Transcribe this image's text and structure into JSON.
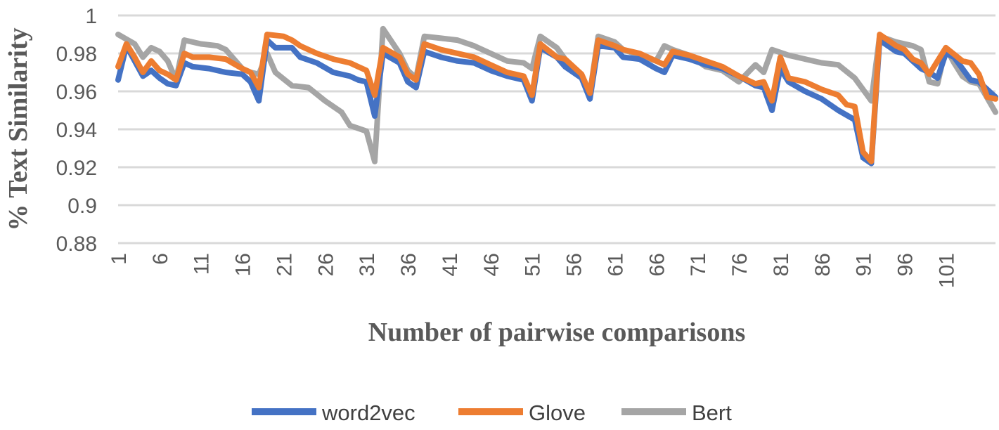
{
  "chart_data": {
    "type": "line",
    "xlabel": "Number of pairwise comparisons",
    "ylabel": "% Text Similarity",
    "ylim": [
      0.88,
      1.0
    ],
    "y_ticks": [
      "0.88",
      "0.9",
      "0.92",
      "0.94",
      "0.96",
      "0.98",
      "1"
    ],
    "y_tick_values": [
      0.88,
      0.9,
      0.92,
      0.94,
      0.96,
      0.98,
      1.0
    ],
    "x_ticks": [
      "1",
      "6",
      "11",
      "16",
      "21",
      "26",
      "31",
      "36",
      "41",
      "46",
      "51",
      "56",
      "61",
      "66",
      "71",
      "76",
      "81",
      "86",
      "91",
      "96",
      "101"
    ],
    "x_tick_values": [
      1,
      6,
      11,
      16,
      21,
      26,
      31,
      36,
      41,
      46,
      51,
      56,
      61,
      66,
      71,
      76,
      81,
      86,
      91,
      96,
      101
    ],
    "x_range": [
      1,
      105
    ],
    "grid": "horizontal",
    "legend_position": "bottom",
    "colors": {
      "word2vec": "#4472C4",
      "Glove": "#ED7D31",
      "Bert": "#A5A5A5",
      "grid": "#D9D9D9"
    },
    "series": [
      {
        "name": "word2vec",
        "color": "#4472C4",
        "points": [
          [
            1,
            0.966
          ],
          [
            2,
            0.984
          ],
          [
            4,
            0.968
          ],
          [
            5,
            0.971
          ],
          [
            6,
            0.967
          ],
          [
            7,
            0.964
          ],
          [
            8,
            0.963
          ],
          [
            9,
            0.975
          ],
          [
            10,
            0.973
          ],
          [
            12,
            0.972
          ],
          [
            14,
            0.97
          ],
          [
            16,
            0.969
          ],
          [
            17,
            0.965
          ],
          [
            18,
            0.955
          ],
          [
            19,
            0.987
          ],
          [
            20,
            0.983
          ],
          [
            22,
            0.983
          ],
          [
            23,
            0.978
          ],
          [
            25,
            0.975
          ],
          [
            27,
            0.97
          ],
          [
            29,
            0.968
          ],
          [
            30,
            0.966
          ],
          [
            31,
            0.965
          ],
          [
            32,
            0.947
          ],
          [
            33,
            0.98
          ],
          [
            35,
            0.975
          ],
          [
            36,
            0.965
          ],
          [
            37,
            0.962
          ],
          [
            38,
            0.981
          ],
          [
            40,
            0.978
          ],
          [
            42,
            0.976
          ],
          [
            44,
            0.975
          ],
          [
            46,
            0.971
          ],
          [
            48,
            0.968
          ],
          [
            50,
            0.966
          ],
          [
            51,
            0.955
          ],
          [
            52,
            0.983
          ],
          [
            54,
            0.978
          ],
          [
            55,
            0.973
          ],
          [
            57,
            0.967
          ],
          [
            58,
            0.956
          ],
          [
            59,
            0.984
          ],
          [
            61,
            0.983
          ],
          [
            62,
            0.978
          ],
          [
            64,
            0.977
          ],
          [
            66,
            0.972
          ],
          [
            67,
            0.97
          ],
          [
            68,
            0.979
          ],
          [
            70,
            0.977
          ],
          [
            72,
            0.974
          ],
          [
            74,
            0.972
          ],
          [
            76,
            0.968
          ],
          [
            78,
            0.963
          ],
          [
            79,
            0.962
          ],
          [
            80,
            0.95
          ],
          [
            81,
            0.972
          ],
          [
            82,
            0.965
          ],
          [
            84,
            0.96
          ],
          [
            86,
            0.956
          ],
          [
            88,
            0.95
          ],
          [
            90,
            0.945
          ],
          [
            91,
            0.925
          ],
          [
            92,
            0.922
          ],
          [
            93,
            0.987
          ],
          [
            95,
            0.981
          ],
          [
            96,
            0.98
          ],
          [
            98,
            0.972
          ],
          [
            99,
            0.97
          ],
          [
            100,
            0.967
          ],
          [
            101,
            0.98
          ],
          [
            102,
            0.978
          ],
          [
            104,
            0.966
          ],
          [
            105,
            0.965
          ],
          [
            107,
            0.957
          ]
        ]
      },
      {
        "name": "Glove",
        "color": "#ED7D31",
        "points": [
          [
            1,
            0.973
          ],
          [
            2,
            0.985
          ],
          [
            3,
            0.978
          ],
          [
            4,
            0.97
          ],
          [
            5,
            0.976
          ],
          [
            6,
            0.971
          ],
          [
            7,
            0.969
          ],
          [
            8,
            0.966
          ],
          [
            9,
            0.98
          ],
          [
            10,
            0.978
          ],
          [
            12,
            0.978
          ],
          [
            14,
            0.977
          ],
          [
            16,
            0.972
          ],
          [
            17,
            0.97
          ],
          [
            18,
            0.962
          ],
          [
            19,
            0.99
          ],
          [
            21,
            0.989
          ],
          [
            22,
            0.987
          ],
          [
            23,
            0.984
          ],
          [
            25,
            0.98
          ],
          [
            27,
            0.977
          ],
          [
            29,
            0.975
          ],
          [
            31,
            0.971
          ],
          [
            32,
            0.958
          ],
          [
            33,
            0.983
          ],
          [
            35,
            0.978
          ],
          [
            36,
            0.969
          ],
          [
            37,
            0.966
          ],
          [
            38,
            0.985
          ],
          [
            40,
            0.982
          ],
          [
            42,
            0.98
          ],
          [
            44,
            0.978
          ],
          [
            46,
            0.974
          ],
          [
            48,
            0.97
          ],
          [
            50,
            0.968
          ],
          [
            51,
            0.958
          ],
          [
            52,
            0.985
          ],
          [
            54,
            0.978
          ],
          [
            55,
            0.977
          ],
          [
            57,
            0.969
          ],
          [
            58,
            0.959
          ],
          [
            59,
            0.987
          ],
          [
            61,
            0.984
          ],
          [
            62,
            0.982
          ],
          [
            64,
            0.98
          ],
          [
            66,
            0.976
          ],
          [
            67,
            0.974
          ],
          [
            68,
            0.981
          ],
          [
            70,
            0.979
          ],
          [
            72,
            0.976
          ],
          [
            74,
            0.973
          ],
          [
            76,
            0.968
          ],
          [
            78,
            0.964
          ],
          [
            79,
            0.965
          ],
          [
            80,
            0.955
          ],
          [
            81,
            0.978
          ],
          [
            82,
            0.967
          ],
          [
            84,
            0.965
          ],
          [
            86,
            0.961
          ],
          [
            88,
            0.958
          ],
          [
            89,
            0.953
          ],
          [
            90,
            0.952
          ],
          [
            91,
            0.928
          ],
          [
            92,
            0.923
          ],
          [
            93,
            0.99
          ],
          [
            95,
            0.984
          ],
          [
            96,
            0.982
          ],
          [
            97,
            0.977
          ],
          [
            98,
            0.975
          ],
          [
            99,
            0.969
          ],
          [
            101,
            0.983
          ],
          [
            103,
            0.976
          ],
          [
            104,
            0.975
          ],
          [
            105,
            0.969
          ],
          [
            106,
            0.957
          ],
          [
            107,
            0.956
          ]
        ]
      },
      {
        "name": "Bert",
        "color": "#A5A5A5",
        "points": [
          [
            1,
            0.99
          ],
          [
            3,
            0.985
          ],
          [
            4,
            0.978
          ],
          [
            5,
            0.983
          ],
          [
            6,
            0.981
          ],
          [
            7,
            0.976
          ],
          [
            8,
            0.966
          ],
          [
            9,
            0.987
          ],
          [
            11,
            0.985
          ],
          [
            13,
            0.984
          ],
          [
            14,
            0.982
          ],
          [
            15,
            0.977
          ],
          [
            16,
            0.972
          ],
          [
            17,
            0.97
          ],
          [
            18,
            0.969
          ],
          [
            19,
            0.98
          ],
          [
            20,
            0.97
          ],
          [
            22,
            0.963
          ],
          [
            24,
            0.962
          ],
          [
            26,
            0.955
          ],
          [
            28,
            0.949
          ],
          [
            29,
            0.942
          ],
          [
            31,
            0.939
          ],
          [
            32,
            0.923
          ],
          [
            33,
            0.993
          ],
          [
            35,
            0.98
          ],
          [
            36,
            0.971
          ],
          [
            37,
            0.967
          ],
          [
            38,
            0.989
          ],
          [
            40,
            0.988
          ],
          [
            42,
            0.987
          ],
          [
            44,
            0.984
          ],
          [
            46,
            0.98
          ],
          [
            48,
            0.976
          ],
          [
            50,
            0.975
          ],
          [
            51,
            0.972
          ],
          [
            52,
            0.989
          ],
          [
            54,
            0.983
          ],
          [
            55,
            0.977
          ],
          [
            57,
            0.968
          ],
          [
            58,
            0.959
          ],
          [
            59,
            0.989
          ],
          [
            61,
            0.986
          ],
          [
            62,
            0.982
          ],
          [
            64,
            0.979
          ],
          [
            66,
            0.976
          ],
          [
            67,
            0.984
          ],
          [
            68,
            0.982
          ],
          [
            70,
            0.979
          ],
          [
            72,
            0.973
          ],
          [
            74,
            0.971
          ],
          [
            76,
            0.965
          ],
          [
            78,
            0.974
          ],
          [
            79,
            0.97
          ],
          [
            80,
            0.982
          ],
          [
            82,
            0.979
          ],
          [
            84,
            0.977
          ],
          [
            86,
            0.975
          ],
          [
            88,
            0.974
          ],
          [
            90,
            0.967
          ],
          [
            91,
            0.961
          ],
          [
            92,
            0.955
          ],
          [
            93,
            0.989
          ],
          [
            95,
            0.986
          ],
          [
            97,
            0.984
          ],
          [
            98,
            0.982
          ],
          [
            99,
            0.965
          ],
          [
            100,
            0.964
          ],
          [
            101,
            0.983
          ],
          [
            102,
            0.975
          ],
          [
            103,
            0.968
          ],
          [
            104,
            0.965
          ],
          [
            105,
            0.964
          ],
          [
            107,
            0.949
          ]
        ]
      }
    ]
  }
}
